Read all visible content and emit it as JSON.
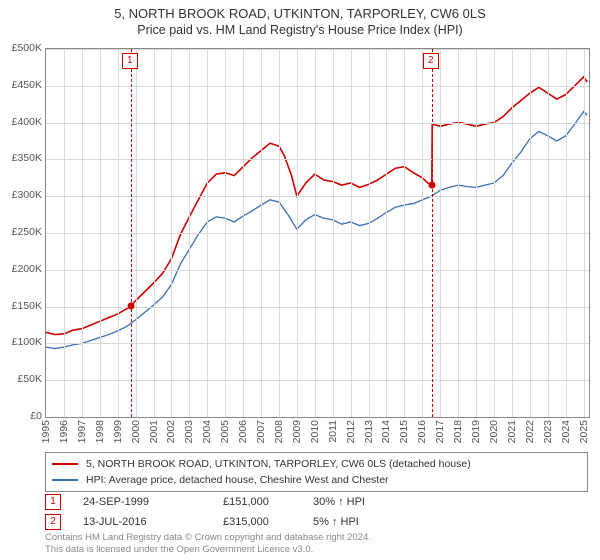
{
  "title": "5, NORTH BROOK ROAD, UTKINTON, TARPORLEY, CW6 0LS",
  "subtitle": "Price paid vs. HM Land Registry's House Price Index (HPI)",
  "chart": {
    "type": "line",
    "plot_bg": "#ffffff",
    "grid_color": "#d9d9d9",
    "axis_color": "#888888",
    "tick_fontsize": 10.5,
    "ylim": [
      0,
      500000
    ],
    "ytick_step": 50000,
    "yticks": [
      "£0",
      "£50K",
      "£100K",
      "£150K",
      "£200K",
      "£250K",
      "£300K",
      "£350K",
      "£400K",
      "£450K",
      "£500K"
    ],
    "x_years": [
      1995,
      1996,
      1997,
      1998,
      1999,
      2000,
      2001,
      2002,
      2003,
      2004,
      2005,
      2006,
      2007,
      2008,
      2009,
      2010,
      2011,
      2012,
      2013,
      2014,
      2015,
      2016,
      2017,
      2018,
      2019,
      2020,
      2021,
      2022,
      2023,
      2024,
      2025
    ],
    "xlim": [
      1995,
      2025.3
    ],
    "series": [
      {
        "name": "5, NORTH BROOK ROAD, UTKINTON, TARPORLEY, CW6 0LS (detached house)",
        "color": "#cc0000",
        "width": 1.6,
        "data": [
          [
            1995,
            115000
          ],
          [
            1995.5,
            112000
          ],
          [
            1996,
            113000
          ],
          [
            1996.5,
            118000
          ],
          [
            1997,
            120000
          ],
          [
            1997.5,
            125000
          ],
          [
            1998,
            130000
          ],
          [
            1998.5,
            135000
          ],
          [
            1999,
            140000
          ],
          [
            1999.5,
            147000
          ],
          [
            1999.73,
            151000
          ],
          [
            2000,
            158000
          ],
          [
            2000.5,
            170000
          ],
          [
            2001,
            182000
          ],
          [
            2001.5,
            195000
          ],
          [
            2002,
            215000
          ],
          [
            2002.5,
            248000
          ],
          [
            2003,
            272000
          ],
          [
            2003.5,
            295000
          ],
          [
            2004,
            318000
          ],
          [
            2004.5,
            330000
          ],
          [
            2005,
            332000
          ],
          [
            2005.5,
            328000
          ],
          [
            2006,
            340000
          ],
          [
            2006.5,
            352000
          ],
          [
            2007,
            362000
          ],
          [
            2007.5,
            372000
          ],
          [
            2008,
            368000
          ],
          [
            2008.3,
            355000
          ],
          [
            2008.7,
            328000
          ],
          [
            2009,
            300000
          ],
          [
            2009.5,
            318000
          ],
          [
            2010,
            330000
          ],
          [
            2010.5,
            322000
          ],
          [
            2011,
            320000
          ],
          [
            2011.5,
            315000
          ],
          [
            2012,
            318000
          ],
          [
            2012.5,
            312000
          ],
          [
            2013,
            316000
          ],
          [
            2013.5,
            322000
          ],
          [
            2014,
            330000
          ],
          [
            2014.5,
            338000
          ],
          [
            2015,
            340000
          ],
          [
            2015.5,
            332000
          ],
          [
            2016,
            325000
          ],
          [
            2016.3,
            318000
          ],
          [
            2016.53,
            315000
          ],
          [
            2016.55,
            398000
          ],
          [
            2017,
            395000
          ],
          [
            2017.5,
            398000
          ],
          [
            2018,
            400000
          ],
          [
            2018.5,
            398000
          ],
          [
            2019,
            395000
          ],
          [
            2019.5,
            398000
          ],
          [
            2020,
            400000
          ],
          [
            2020.5,
            408000
          ],
          [
            2021,
            420000
          ],
          [
            2021.5,
            430000
          ],
          [
            2022,
            440000
          ],
          [
            2022.5,
            448000
          ],
          [
            2023,
            440000
          ],
          [
            2023.5,
            432000
          ],
          [
            2024,
            438000
          ],
          [
            2024.5,
            450000
          ],
          [
            2025,
            462000
          ],
          [
            2025.2,
            455000
          ]
        ]
      },
      {
        "name": "HPI: Average price, detached house, Cheshire West and Chester",
        "color": "#3a6fb7",
        "width": 1.3,
        "data": [
          [
            1995,
            95000
          ],
          [
            1995.5,
            93000
          ],
          [
            1996,
            95000
          ],
          [
            1996.5,
            98000
          ],
          [
            1997,
            100000
          ],
          [
            1997.5,
            104000
          ],
          [
            1998,
            108000
          ],
          [
            1998.5,
            112000
          ],
          [
            1999,
            117000
          ],
          [
            1999.5,
            123000
          ],
          [
            2000,
            132000
          ],
          [
            2000.5,
            142000
          ],
          [
            2001,
            152000
          ],
          [
            2001.5,
            163000
          ],
          [
            2002,
            180000
          ],
          [
            2002.5,
            208000
          ],
          [
            2003,
            228000
          ],
          [
            2003.5,
            248000
          ],
          [
            2004,
            265000
          ],
          [
            2004.5,
            272000
          ],
          [
            2005,
            270000
          ],
          [
            2005.5,
            265000
          ],
          [
            2006,
            273000
          ],
          [
            2006.5,
            280000
          ],
          [
            2007,
            288000
          ],
          [
            2007.5,
            295000
          ],
          [
            2008,
            292000
          ],
          [
            2008.5,
            275000
          ],
          [
            2009,
            255000
          ],
          [
            2009.5,
            268000
          ],
          [
            2010,
            275000
          ],
          [
            2010.5,
            270000
          ],
          [
            2011,
            268000
          ],
          [
            2011.5,
            262000
          ],
          [
            2012,
            265000
          ],
          [
            2012.5,
            260000
          ],
          [
            2013,
            263000
          ],
          [
            2013.5,
            270000
          ],
          [
            2014,
            278000
          ],
          [
            2014.5,
            285000
          ],
          [
            2015,
            288000
          ],
          [
            2015.5,
            290000
          ],
          [
            2016,
            295000
          ],
          [
            2016.5,
            300000
          ],
          [
            2017,
            308000
          ],
          [
            2017.5,
            312000
          ],
          [
            2018,
            315000
          ],
          [
            2018.5,
            313000
          ],
          [
            2019,
            312000
          ],
          [
            2019.5,
            315000
          ],
          [
            2020,
            318000
          ],
          [
            2020.5,
            328000
          ],
          [
            2021,
            345000
          ],
          [
            2021.5,
            360000
          ],
          [
            2022,
            378000
          ],
          [
            2022.5,
            388000
          ],
          [
            2023,
            382000
          ],
          [
            2023.5,
            375000
          ],
          [
            2024,
            382000
          ],
          [
            2024.5,
            398000
          ],
          [
            2025,
            415000
          ],
          [
            2025.2,
            410000
          ]
        ]
      }
    ],
    "sale_markers": [
      {
        "n": "1",
        "year": 1999.73,
        "price": 151000,
        "color": "#cc0000"
      },
      {
        "n": "2",
        "year": 2016.53,
        "price": 315000,
        "color": "#cc0000"
      }
    ]
  },
  "legend": {
    "rows": [
      {
        "color": "#cc0000",
        "label": "5, NORTH BROOK ROAD, UTKINTON, TARPORLEY, CW6 0LS (detached house)"
      },
      {
        "color": "#3a6fb7",
        "label": "HPI: Average price, detached house, Cheshire West and Chester"
      }
    ]
  },
  "sales_table": [
    {
      "n": "1",
      "date": "24-SEP-1999",
      "price": "£151,000",
      "delta": "30% ↑ HPI"
    },
    {
      "n": "2",
      "date": "13-JUL-2016",
      "price": "£315,000",
      "delta": "5% ↑ HPI"
    }
  ],
  "footer": {
    "line1": "Contains HM Land Registry data © Crown copyright and database right 2024.",
    "line2": "This data is licensed under the Open Government Licence v3.0."
  }
}
